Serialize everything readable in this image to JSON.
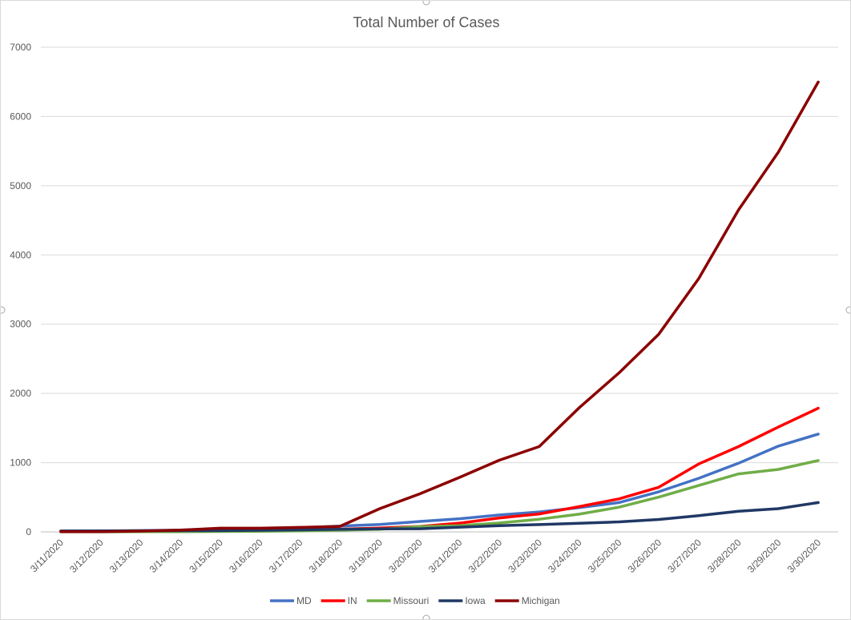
{
  "chart_data": {
    "type": "line",
    "title": "Total Number of Cases",
    "xlabel": "",
    "ylabel": "",
    "ylim": [
      0,
      7000
    ],
    "yticks": [
      0,
      1000,
      2000,
      3000,
      4000,
      5000,
      6000,
      7000
    ],
    "grid": true,
    "legend": "bottom",
    "categories": [
      "3/11/2020",
      "3/12/2020",
      "3/13/2020",
      "3/14/2020",
      "3/15/2020",
      "3/16/2020",
      "3/17/2020",
      "3/18/2020",
      "3/19/2020",
      "3/20/2020",
      "3/21/2020",
      "3/22/2020",
      "3/23/2020",
      "3/24/2020",
      "3/25/2020",
      "3/26/2020",
      "3/27/2020",
      "3/28/2020",
      "3/29/2020",
      "3/30/2020"
    ],
    "series": [
      {
        "name": "MD",
        "color": "#4472C4",
        "values": [
          9,
          12,
          18,
          26,
          37,
          41,
          57,
          85,
          107,
          150,
          190,
          244,
          288,
          349,
          423,
          580,
          774,
          992,
          1239,
          1413
        ]
      },
      {
        "name": "IN",
        "color": "#FF0000",
        "values": [
          10,
          12,
          13,
          15,
          19,
          25,
          30,
          39,
          56,
          79,
          126,
          201,
          259,
          365,
          477,
          645,
          981,
          1232,
          1514,
          1786
        ]
      },
      {
        "name": "Missouri",
        "color": "#70AD47",
        "values": [
          1,
          1,
          2,
          4,
          6,
          9,
          15,
          24,
          38,
          76,
          90,
          128,
          183,
          256,
          356,
          502,
          670,
          838,
          903,
          1031
        ]
      },
      {
        "name": "Iowa",
        "color": "#203864",
        "values": [
          13,
          14,
          16,
          17,
          18,
          23,
          29,
          38,
          44,
          45,
          68,
          90,
          105,
          124,
          145,
          179,
          235,
          298,
          336,
          424
        ]
      },
      {
        "name": "Michigan",
        "color": "#8B0000",
        "values": [
          2,
          2,
          12,
          25,
          53,
          53,
          65,
          80,
          336,
          549,
          787,
          1035,
          1232,
          1791,
          2295,
          2856,
          3657,
          4650,
          5486,
          6498
        ]
      }
    ]
  }
}
